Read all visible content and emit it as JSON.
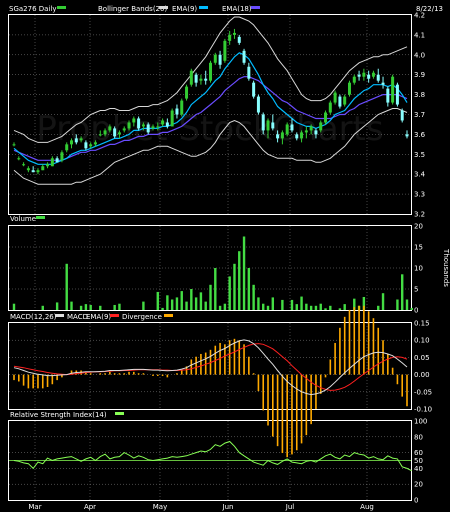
{
  "header": {
    "symbol_label": "SGa276 Daily",
    "bollinger_label": "Bollinger Bands(20)",
    "ema_short_label": "EMA(9)",
    "ema_long_label": "EMA(18)",
    "date": "8/22/13",
    "watermark": "Prophet StockCharts"
  },
  "colors": {
    "bg": "#000000",
    "frame": "#ffffff",
    "grid": "#8a8a8a",
    "up_candle": "#33cc33",
    "down_candle": "#88ffff",
    "bollinger": "#d8d8d8",
    "ema_short": "#00bbff",
    "ema_long": "#6a4cff",
    "volume": "#44dd44",
    "macd": "#dddddd",
    "macd_signal": "#ff2020",
    "divergence": "#ffaa00",
    "rsi": "#88ff55"
  },
  "chart_data": [
    {
      "panel": "price",
      "type": "candlestick",
      "x_labels": [
        "Mar",
        "Apr",
        "May",
        "Jun",
        "Jul",
        "Aug"
      ],
      "ylim": [
        3.2,
        4.2
      ],
      "ytick_labels": [
        "3.2",
        "3.3",
        "3.4",
        "3.5",
        "3.6",
        "3.7",
        "3.8",
        "3.9",
        "4.0",
        "4.1",
        "4.2"
      ],
      "ohlc": [
        [
          3.55,
          3.56,
          3.54,
          3.55
        ],
        [
          3.48,
          3.49,
          3.47,
          3.48
        ],
        [
          3.45,
          3.46,
          3.44,
          3.45
        ],
        [
          3.42,
          3.44,
          3.41,
          3.43
        ],
        [
          3.42,
          3.44,
          3.41,
          3.41
        ],
        [
          3.41,
          3.43,
          3.4,
          3.42
        ],
        [
          3.42,
          3.45,
          3.42,
          3.44
        ],
        [
          3.44,
          3.46,
          3.43,
          3.45
        ],
        [
          3.44,
          3.49,
          3.44,
          3.48
        ],
        [
          3.48,
          3.49,
          3.46,
          3.46
        ],
        [
          3.47,
          3.52,
          3.46,
          3.51
        ],
        [
          3.52,
          3.56,
          3.51,
          3.55
        ],
        [
          3.55,
          3.58,
          3.53,
          3.57
        ],
        [
          3.58,
          3.6,
          3.55,
          3.56
        ],
        [
          3.57,
          3.59,
          3.56,
          3.58
        ],
        [
          3.56,
          3.57,
          3.52,
          3.53
        ],
        [
          3.54,
          3.56,
          3.53,
          3.55
        ],
        [
          3.55,
          3.57,
          3.54,
          3.56
        ],
        [
          3.6,
          3.62,
          3.59,
          3.6
        ],
        [
          3.6,
          3.63,
          3.59,
          3.62
        ],
        [
          3.62,
          3.65,
          3.61,
          3.64
        ],
        [
          3.63,
          3.64,
          3.58,
          3.59
        ],
        [
          3.6,
          3.62,
          3.58,
          3.61
        ],
        [
          3.62,
          3.64,
          3.61,
          3.63
        ],
        [
          3.63,
          3.67,
          3.62,
          3.66
        ],
        [
          3.66,
          3.69,
          3.64,
          3.68
        ],
        [
          3.68,
          3.69,
          3.62,
          3.63
        ],
        [
          3.64,
          3.66,
          3.62,
          3.65
        ],
        [
          3.65,
          3.66,
          3.6,
          3.61
        ],
        [
          3.63,
          3.65,
          3.62,
          3.64
        ],
        [
          3.64,
          3.66,
          3.62,
          3.64
        ],
        [
          3.65,
          3.68,
          3.64,
          3.67
        ],
        [
          3.66,
          3.68,
          3.63,
          3.64
        ],
        [
          3.64,
          3.73,
          3.64,
          3.72
        ],
        [
          3.73,
          3.75,
          3.68,
          3.7
        ],
        [
          3.7,
          3.78,
          3.69,
          3.77
        ],
        [
          3.78,
          3.85,
          3.77,
          3.84
        ],
        [
          3.85,
          3.93,
          3.84,
          3.92
        ],
        [
          3.9,
          3.91,
          3.84,
          3.86
        ],
        [
          3.87,
          3.9,
          3.85,
          3.88
        ],
        [
          3.88,
          3.92,
          3.85,
          3.87
        ],
        [
          3.87,
          3.97,
          3.86,
          3.96
        ],
        [
          3.96,
          4.01,
          3.95,
          4.0
        ],
        [
          4.0,
          4.02,
          3.93,
          3.95
        ],
        [
          3.97,
          4.08,
          3.96,
          4.07
        ],
        [
          4.07,
          4.12,
          4.05,
          4.1
        ],
        [
          4.1,
          4.13,
          4.08,
          4.11
        ],
        [
          4.09,
          4.1,
          4.05,
          4.06
        ],
        [
          4.02,
          4.03,
          3.95,
          3.96
        ],
        [
          3.94,
          3.96,
          3.87,
          3.88
        ],
        [
          3.86,
          3.87,
          3.78,
          3.79
        ],
        [
          3.79,
          3.8,
          3.7,
          3.71
        ],
        [
          3.7,
          3.71,
          3.6,
          3.62
        ],
        [
          3.62,
          3.68,
          3.58,
          3.67
        ],
        [
          3.66,
          3.7,
          3.62,
          3.63
        ],
        [
          3.6,
          3.62,
          3.56,
          3.58
        ],
        [
          3.58,
          3.62,
          3.55,
          3.61
        ],
        [
          3.6,
          3.66,
          3.59,
          3.65
        ],
        [
          3.65,
          3.68,
          3.61,
          3.62
        ],
        [
          3.6,
          3.61,
          3.57,
          3.58
        ],
        [
          3.58,
          3.62,
          3.56,
          3.61
        ],
        [
          3.61,
          3.64,
          3.58,
          3.62
        ],
        [
          3.62,
          3.65,
          3.6,
          3.64
        ],
        [
          3.62,
          3.63,
          3.58,
          3.6
        ],
        [
          3.62,
          3.67,
          3.61,
          3.66
        ],
        [
          3.66,
          3.72,
          3.65,
          3.71
        ],
        [
          3.71,
          3.77,
          3.7,
          3.76
        ],
        [
          3.76,
          3.82,
          3.75,
          3.81
        ],
        [
          3.79,
          3.8,
          3.73,
          3.74
        ],
        [
          3.75,
          3.8,
          3.74,
          3.79
        ],
        [
          3.8,
          3.87,
          3.79,
          3.86
        ],
        [
          3.86,
          3.9,
          3.85,
          3.89
        ],
        [
          3.9,
          3.92,
          3.87,
          3.89
        ],
        [
          3.89,
          3.93,
          3.87,
          3.91
        ],
        [
          3.9,
          3.92,
          3.86,
          3.88
        ],
        [
          3.89,
          3.92,
          3.88,
          3.91
        ],
        [
          3.9,
          3.93,
          3.86,
          3.87
        ],
        [
          3.86,
          3.89,
          3.83,
          3.85
        ],
        [
          3.83,
          3.84,
          3.74,
          3.76
        ],
        [
          3.76,
          3.9,
          3.75,
          3.89
        ],
        [
          3.85,
          3.86,
          3.74,
          3.75
        ],
        [
          3.72,
          3.73,
          3.66,
          3.67
        ],
        [
          3.6,
          3.62,
          3.58,
          3.59
        ]
      ],
      "bollinger_upper": [
        3.62,
        3.61,
        3.6,
        3.58,
        3.57,
        3.56,
        3.56,
        3.56,
        3.57,
        3.58,
        3.59,
        3.61,
        3.63,
        3.65,
        3.66,
        3.68,
        3.7,
        3.71,
        3.72,
        3.72,
        3.73,
        3.73,
        3.72,
        3.72,
        3.72,
        3.73,
        3.74,
        3.74,
        3.74,
        3.75,
        3.75,
        3.76,
        3.77,
        3.79,
        3.81,
        3.84,
        3.87,
        3.9,
        3.93,
        3.96,
        3.99,
        4.03,
        4.07,
        4.11,
        4.14,
        4.17,
        4.19,
        4.19,
        4.18,
        4.17,
        4.15,
        4.12,
        4.09,
        4.06,
        4.02,
        3.98,
        3.95,
        3.92,
        3.88,
        3.84,
        3.8,
        3.78,
        3.77,
        3.77,
        3.77,
        3.78,
        3.8,
        3.83,
        3.86,
        3.89,
        3.92,
        3.94,
        3.96,
        3.97,
        3.98,
        3.99,
        3.99,
        4.0,
        4.0,
        4.01,
        4.02,
        4.03,
        4.04
      ],
      "bollinger_lower": [
        3.42,
        3.4,
        3.38,
        3.37,
        3.36,
        3.35,
        3.35,
        3.35,
        3.35,
        3.35,
        3.35,
        3.35,
        3.35,
        3.36,
        3.36,
        3.37,
        3.38,
        3.39,
        3.4,
        3.42,
        3.44,
        3.46,
        3.47,
        3.48,
        3.49,
        3.5,
        3.51,
        3.52,
        3.52,
        3.53,
        3.54,
        3.54,
        3.54,
        3.53,
        3.52,
        3.51,
        3.5,
        3.49,
        3.49,
        3.5,
        3.51,
        3.53,
        3.56,
        3.6,
        3.63,
        3.66,
        3.67,
        3.66,
        3.64,
        3.61,
        3.58,
        3.55,
        3.52,
        3.5,
        3.49,
        3.48,
        3.48,
        3.48,
        3.48,
        3.47,
        3.47,
        3.47,
        3.47,
        3.46,
        3.46,
        3.47,
        3.48,
        3.5,
        3.52,
        3.54,
        3.57,
        3.6,
        3.62,
        3.64,
        3.66,
        3.68,
        3.7,
        3.71,
        3.72,
        3.73,
        3.73,
        3.72,
        3.71
      ],
      "ema_9": [
        3.53,
        3.51,
        3.49,
        3.47,
        3.46,
        3.45,
        3.45,
        3.45,
        3.45,
        3.46,
        3.47,
        3.48,
        3.5,
        3.51,
        3.52,
        3.52,
        3.53,
        3.54,
        3.55,
        3.56,
        3.57,
        3.58,
        3.58,
        3.59,
        3.6,
        3.62,
        3.62,
        3.63,
        3.63,
        3.63,
        3.63,
        3.64,
        3.64,
        3.65,
        3.66,
        3.68,
        3.71,
        3.75,
        3.77,
        3.79,
        3.81,
        3.84,
        3.87,
        3.89,
        3.93,
        3.96,
        3.99,
        4.01,
        4.0,
        3.98,
        3.94,
        3.9,
        3.85,
        3.81,
        3.78,
        3.74,
        3.72,
        3.7,
        3.68,
        3.66,
        3.65,
        3.64,
        3.64,
        3.63,
        3.64,
        3.65,
        3.67,
        3.7,
        3.71,
        3.72,
        3.75,
        3.78,
        3.8,
        3.82,
        3.83,
        3.85,
        3.85,
        3.85,
        3.84,
        3.85,
        3.83,
        3.8,
        3.76
      ],
      "ema_18": [
        3.52,
        3.51,
        3.5,
        3.49,
        3.48,
        3.47,
        3.47,
        3.47,
        3.47,
        3.47,
        3.47,
        3.48,
        3.49,
        3.5,
        3.51,
        3.51,
        3.52,
        3.52,
        3.53,
        3.54,
        3.55,
        3.55,
        3.56,
        3.57,
        3.57,
        3.58,
        3.59,
        3.59,
        3.6,
        3.6,
        3.6,
        3.61,
        3.61,
        3.62,
        3.63,
        3.64,
        3.66,
        3.68,
        3.7,
        3.71,
        3.73,
        3.75,
        3.77,
        3.79,
        3.82,
        3.84,
        3.86,
        3.88,
        3.89,
        3.89,
        3.88,
        3.87,
        3.85,
        3.83,
        3.81,
        3.79,
        3.77,
        3.76,
        3.74,
        3.72,
        3.71,
        3.7,
        3.69,
        3.68,
        3.68,
        3.68,
        3.68,
        3.69,
        3.7,
        3.7,
        3.72,
        3.73,
        3.75,
        3.76,
        3.77,
        3.78,
        3.79,
        3.8,
        3.8,
        3.8,
        3.8,
        3.79,
        3.78
      ]
    },
    {
      "panel": "volume",
      "type": "bar",
      "title": "Volume",
      "ylabel": "Thousands",
      "ylim": [
        0,
        20
      ],
      "ytick_labels": [
        "0",
        "5",
        "10",
        "15",
        "20"
      ],
      "values": [
        1.5,
        0,
        0,
        0,
        0,
        0,
        1,
        0,
        0,
        1.8,
        0,
        11,
        2,
        0,
        1,
        1.4,
        1.2,
        0,
        1,
        0,
        0,
        1.2,
        1.5,
        0,
        0,
        0,
        0,
        2,
        0,
        0,
        4.3,
        0.5,
        3.5,
        2.5,
        3,
        4.5,
        2,
        5,
        3,
        4.2,
        2,
        6,
        10,
        1,
        1.5,
        8,
        11,
        14,
        17.5,
        10,
        6,
        3,
        1.5,
        1,
        3,
        0,
        2.4,
        0,
        2.4,
        1.4,
        3.2,
        1.5,
        1,
        1,
        1.5,
        0.4,
        1,
        0,
        0.4,
        1.4,
        0,
        2.7,
        1,
        3.1,
        0,
        0,
        1,
        4,
        0,
        0,
        2.5,
        8.5,
        2.5,
        0.5
      ]
    },
    {
      "panel": "macd",
      "type": "line",
      "title": "MACD(12,26)",
      "series_labels": [
        "MACD",
        "EMA(9)",
        "Divergence"
      ],
      "ylim": [
        -0.1,
        0.15
      ],
      "ytick_labels": [
        "0.15",
        "0.10",
        "0.05",
        "0.00",
        "-0.05",
        "-0.10"
      ],
      "macd": [
        0.02,
        0.017,
        0.012,
        0.007,
        0.004,
        0.001,
        -0.001,
        -0.003,
        -0.003,
        -0.002,
        -0.001,
        0.0,
        0.004,
        0.006,
        0.007,
        0.008,
        0.008,
        0.008,
        0.009,
        0.01,
        0.012,
        0.012,
        0.012,
        0.013,
        0.014,
        0.015,
        0.015,
        0.015,
        0.014,
        0.013,
        0.013,
        0.012,
        0.011,
        0.012,
        0.013,
        0.016,
        0.02,
        0.028,
        0.034,
        0.04,
        0.046,
        0.053,
        0.062,
        0.07,
        0.076,
        0.085,
        0.092,
        0.098,
        0.101,
        0.098,
        0.09,
        0.078,
        0.062,
        0.045,
        0.03,
        0.012,
        -0.005,
        -0.02,
        -0.032,
        -0.042,
        -0.05,
        -0.055,
        -0.058,
        -0.056,
        -0.052,
        -0.045,
        -0.035,
        -0.022,
        -0.008,
        0.005,
        0.018,
        0.03,
        0.042,
        0.052,
        0.058,
        0.063,
        0.065,
        0.064,
        0.06,
        0.055,
        0.045,
        0.034,
        0.022
      ],
      "signal": [
        0.024,
        0.022,
        0.02,
        0.017,
        0.014,
        0.011,
        0.009,
        0.006,
        0.004,
        0.002,
        0.001,
        0.0,
        0.001,
        0.003,
        0.004,
        0.006,
        0.007,
        0.008,
        0.008,
        0.009,
        0.01,
        0.011,
        0.011,
        0.012,
        0.012,
        0.013,
        0.014,
        0.014,
        0.014,
        0.014,
        0.014,
        0.013,
        0.013,
        0.012,
        0.012,
        0.013,
        0.014,
        0.017,
        0.021,
        0.025,
        0.03,
        0.035,
        0.041,
        0.047,
        0.054,
        0.06,
        0.066,
        0.073,
        0.079,
        0.085,
        0.089,
        0.09,
        0.088,
        0.082,
        0.075,
        0.064,
        0.052,
        0.04,
        0.026,
        0.013,
        0.0,
        -0.011,
        -0.022,
        -0.031,
        -0.038,
        -0.043,
        -0.046,
        -0.045,
        -0.042,
        -0.037,
        -0.029,
        -0.019,
        -0.008,
        0.002,
        0.012,
        0.022,
        0.031,
        0.039,
        0.045,
        0.05,
        0.052,
        0.05,
        0.045
      ]
    },
    {
      "panel": "rsi",
      "type": "line",
      "title": "Relative Strength Index(14)",
      "ylim": [
        0,
        100
      ],
      "ytick_labels": [
        "0",
        "20",
        "40",
        "50",
        "60",
        "80",
        "100"
      ],
      "values": [
        50,
        49,
        47,
        46,
        40,
        48,
        46,
        53,
        50,
        52,
        53,
        54,
        55,
        52,
        49,
        52,
        54,
        50,
        55,
        58,
        52,
        54,
        55,
        60,
        57,
        53,
        56,
        54,
        51,
        50,
        51,
        52,
        53,
        55,
        54,
        55,
        56,
        58,
        60,
        62,
        61,
        64,
        70,
        68,
        72,
        74,
        68,
        60,
        56,
        52,
        48,
        46,
        44,
        50,
        47,
        45,
        49,
        52,
        48,
        47,
        46,
        49,
        50,
        48,
        52,
        56,
        58,
        54,
        52,
        57,
        55,
        60,
        58,
        57,
        53,
        55,
        52,
        51,
        56,
        53,
        52,
        42,
        40,
        37
      ]
    }
  ]
}
